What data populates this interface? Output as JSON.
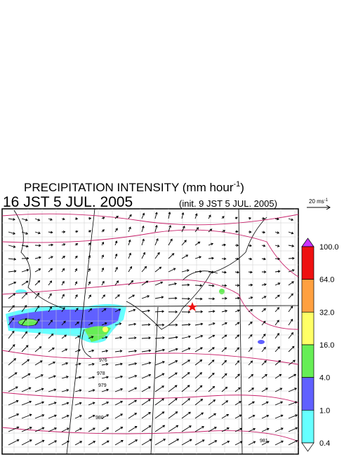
{
  "title": {
    "main": "PRECIPITATION INTENSITY (mm hour",
    "sup": "-1",
    "close": ")"
  },
  "valid_time": "16 JST 5 JUL. 2005",
  "init_time": "(init. 9 JST 5 JUL. 2005)",
  "wind_scale": {
    "label": "20 ms",
    "sup": "-1"
  },
  "colorbar": {
    "labels": [
      "100.0",
      "64.0",
      "32.0",
      "16.0",
      "4.0",
      "1.0",
      "0.4"
    ],
    "colors": [
      "#ee1111",
      "#ffa040",
      "#ffff66",
      "#66ee55",
      "#6060ff",
      "#66ffff"
    ],
    "over_color": "#cc33ff",
    "under_color": "#ffffff"
  },
  "contour_labels": [
    "976",
    "978",
    "979",
    "980",
    "981"
  ]
}
